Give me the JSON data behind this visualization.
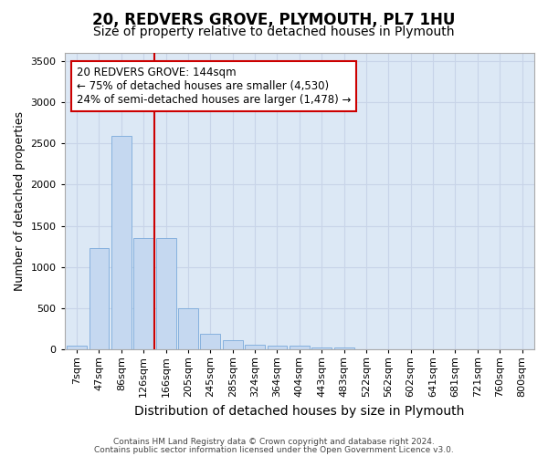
{
  "title": "20, REDVERS GROVE, PLYMOUTH, PL7 1HU",
  "subtitle": "Size of property relative to detached houses in Plymouth",
  "xlabel": "Distribution of detached houses by size in Plymouth",
  "ylabel": "Number of detached properties",
  "categories": [
    "7sqm",
    "47sqm",
    "86sqm",
    "126sqm",
    "166sqm",
    "205sqm",
    "245sqm",
    "285sqm",
    "324sqm",
    "364sqm",
    "404sqm",
    "443sqm",
    "483sqm",
    "522sqm",
    "562sqm",
    "602sqm",
    "641sqm",
    "681sqm",
    "721sqm",
    "760sqm",
    "800sqm"
  ],
  "values": [
    50,
    1230,
    2590,
    1350,
    1350,
    495,
    195,
    110,
    55,
    50,
    50,
    30,
    25,
    0,
    0,
    0,
    0,
    0,
    0,
    0,
    0
  ],
  "bar_color": "#c5d8f0",
  "bar_edge_color": "#7aaadb",
  "vline_x": 3.5,
  "vline_color": "#cc0000",
  "annotation_text": "20 REDVERS GROVE: 144sqm\n← 75% of detached houses are smaller (4,530)\n24% of semi-detached houses are larger (1,478) →",
  "annotation_box_facecolor": "#ffffff",
  "annotation_box_edgecolor": "#cc0000",
  "ylim": [
    0,
    3600
  ],
  "yticks": [
    0,
    500,
    1000,
    1500,
    2000,
    2500,
    3000,
    3500
  ],
  "grid_color": "#c8d4e8",
  "background_color": "#dce8f5",
  "fig_background": "#ffffff",
  "footer_line1": "Contains HM Land Registry data © Crown copyright and database right 2024.",
  "footer_line2": "Contains public sector information licensed under the Open Government Licence v3.0.",
  "title_fontsize": 12,
  "subtitle_fontsize": 10,
  "ylabel_fontsize": 9,
  "xlabel_fontsize": 10,
  "tick_fontsize": 8,
  "annotation_fontsize": 8.5,
  "footer_fontsize": 6.5
}
